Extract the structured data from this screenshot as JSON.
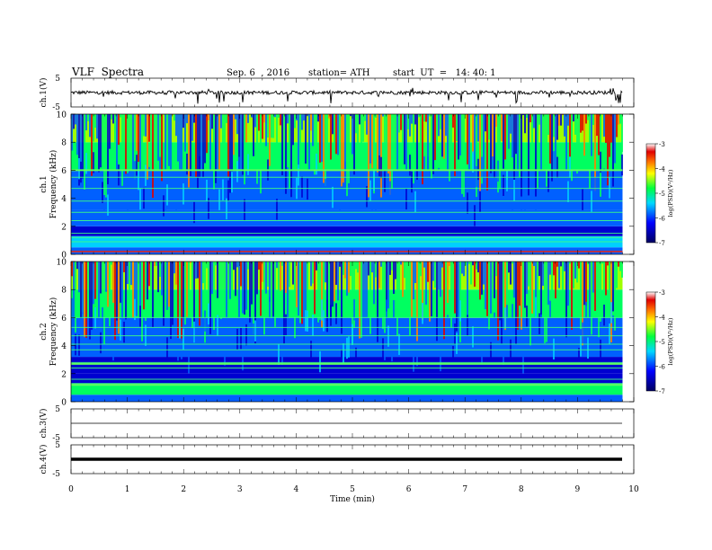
{
  "header": {
    "title": "VLF  Spectra",
    "date": "Sep. 6  , 2016",
    "station": "station= ATH",
    "start": "start  UT  =   14: 40: 1"
  },
  "chart_data": [
    {
      "type": "line",
      "panel": "ch1-waveform",
      "ylabel": "ch.1(V)",
      "yticks": [
        "5",
        "-5"
      ],
      "ylim": [
        -5,
        5
      ],
      "xlim": [
        0,
        10
      ],
      "x_end": 9.8,
      "baseline": 0.0,
      "amplitude": 0.6
    },
    {
      "type": "heatmap",
      "panel": "ch1-spectrogram",
      "ylabel": "ch.1\nFrequency (kHz)",
      "ylabel_lines": [
        "ch.1",
        "Frequency (kHz)"
      ],
      "yticks": [
        "0",
        "2",
        "4",
        "6",
        "8",
        "10"
      ],
      "ylim": [
        0,
        10
      ],
      "xlim": [
        0,
        10
      ],
      "x_end": 9.8,
      "colorbar": {
        "label": "log(PSD)(V²/Hz)",
        "ticks": [
          "-3",
          "-4",
          "-5",
          "-6",
          "-7"
        ],
        "range": [
          -7,
          -3
        ]
      },
      "horizontal_lines_kHz": [
        0.9,
        1.2,
        1.5,
        2.4,
        3.0,
        3.8,
        4.7,
        5.5,
        6.0
      ],
      "strong_lines_kHz": [
        6.0,
        0.2
      ]
    },
    {
      "type": "heatmap",
      "panel": "ch2-spectrogram",
      "ylabel": "ch.2\nFrequency (kHz)",
      "ylabel_lines": [
        "ch.2",
        "Frequency (kHz)"
      ],
      "yticks": [
        "0",
        "2",
        "4",
        "6",
        "8",
        "10"
      ],
      "ylim": [
        0,
        10
      ],
      "xlim": [
        0,
        10
      ],
      "x_end": 9.8,
      "colorbar": {
        "label": "log(PSD)(V²/Hz)",
        "ticks": [
          "-3",
          "-4",
          "-5",
          "-6",
          "-7"
        ],
        "range": [
          -7,
          -3
        ]
      },
      "horizontal_lines_kHz": [
        1.3,
        1.6,
        2.4,
        2.8,
        3.7,
        4.1,
        4.7,
        5.3,
        6.0
      ],
      "strong_lines_kHz": [
        1.2,
        2.7
      ]
    },
    {
      "type": "line",
      "panel": "ch3-waveform",
      "ylabel": "ch.3(V)",
      "yticks": [
        "5",
        "-5"
      ],
      "ylim": [
        -5,
        5
      ],
      "xlim": [
        0,
        10
      ],
      "x_end": 9.8,
      "baseline": 0.0,
      "amplitude": 0.0
    },
    {
      "type": "line",
      "panel": "ch4-waveform",
      "ylabel": "ch.4(V)",
      "yticks": [
        "5",
        "-5"
      ],
      "ylim": [
        -5,
        5
      ],
      "xlim": [
        0,
        10
      ],
      "x_end": 9.8,
      "baseline": 0.0,
      "amplitude": 0.0,
      "thick": true
    }
  ],
  "xaxis": {
    "label": "Time  (min)",
    "ticks": [
      "0",
      "1",
      "2",
      "3",
      "4",
      "5",
      "6",
      "7",
      "8",
      "9",
      "10"
    ]
  }
}
